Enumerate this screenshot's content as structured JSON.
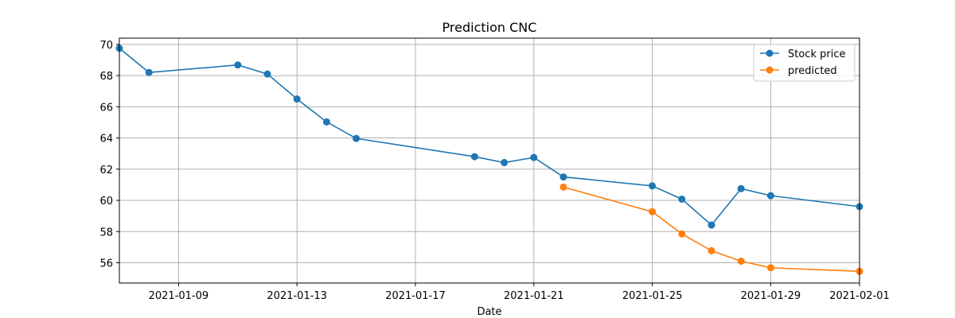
{
  "chart_data": {
    "type": "line",
    "title": "Prediction CNC",
    "xlabel": "Date",
    "ylabel": "",
    "xlim": [
      "2021-01-07",
      "2021-02-01"
    ],
    "ylim": [
      54.7,
      70.4
    ],
    "x_ticks": [
      "2021-01-09",
      "2021-01-13",
      "2021-01-17",
      "2021-01-21",
      "2021-01-25",
      "2021-01-29",
      "2021-02-01"
    ],
    "y_ticks": [
      56,
      58,
      60,
      62,
      64,
      66,
      68,
      70
    ],
    "grid": true,
    "legend_position": "top-right",
    "series": [
      {
        "name": "Stock price",
        "color": "#1f77b4",
        "marker": "circle",
        "points": [
          {
            "x": "2021-01-07",
            "y": 69.75
          },
          {
            "x": "2021-01-08",
            "y": 68.2
          },
          {
            "x": "2021-01-11",
            "y": 68.68
          },
          {
            "x": "2021-01-12",
            "y": 68.1
          },
          {
            "x": "2021-01-13",
            "y": 66.5
          },
          {
            "x": "2021-01-14",
            "y": 65.03
          },
          {
            "x": "2021-01-15",
            "y": 63.97
          },
          {
            "x": "2021-01-19",
            "y": 62.8
          },
          {
            "x": "2021-01-20",
            "y": 62.42
          },
          {
            "x": "2021-01-21",
            "y": 62.75
          },
          {
            "x": "2021-01-22",
            "y": 61.5
          },
          {
            "x": "2021-01-25",
            "y": 60.93
          },
          {
            "x": "2021-01-26",
            "y": 60.08
          },
          {
            "x": "2021-01-27",
            "y": 58.42
          },
          {
            "x": "2021-01-28",
            "y": 60.75
          },
          {
            "x": "2021-01-29",
            "y": 60.3
          },
          {
            "x": "2021-02-01",
            "y": 59.6
          }
        ]
      },
      {
        "name": "predicted",
        "color": "#ff7f0e",
        "marker": "circle",
        "points": [
          {
            "x": "2021-01-22",
            "y": 60.85
          },
          {
            "x": "2021-01-25",
            "y": 59.27
          },
          {
            "x": "2021-01-26",
            "y": 57.85
          },
          {
            "x": "2021-01-27",
            "y": 56.77
          },
          {
            "x": "2021-01-28",
            "y": 56.1
          },
          {
            "x": "2021-01-29",
            "y": 55.68
          },
          {
            "x": "2021-02-01",
            "y": 55.45
          }
        ]
      }
    ]
  }
}
